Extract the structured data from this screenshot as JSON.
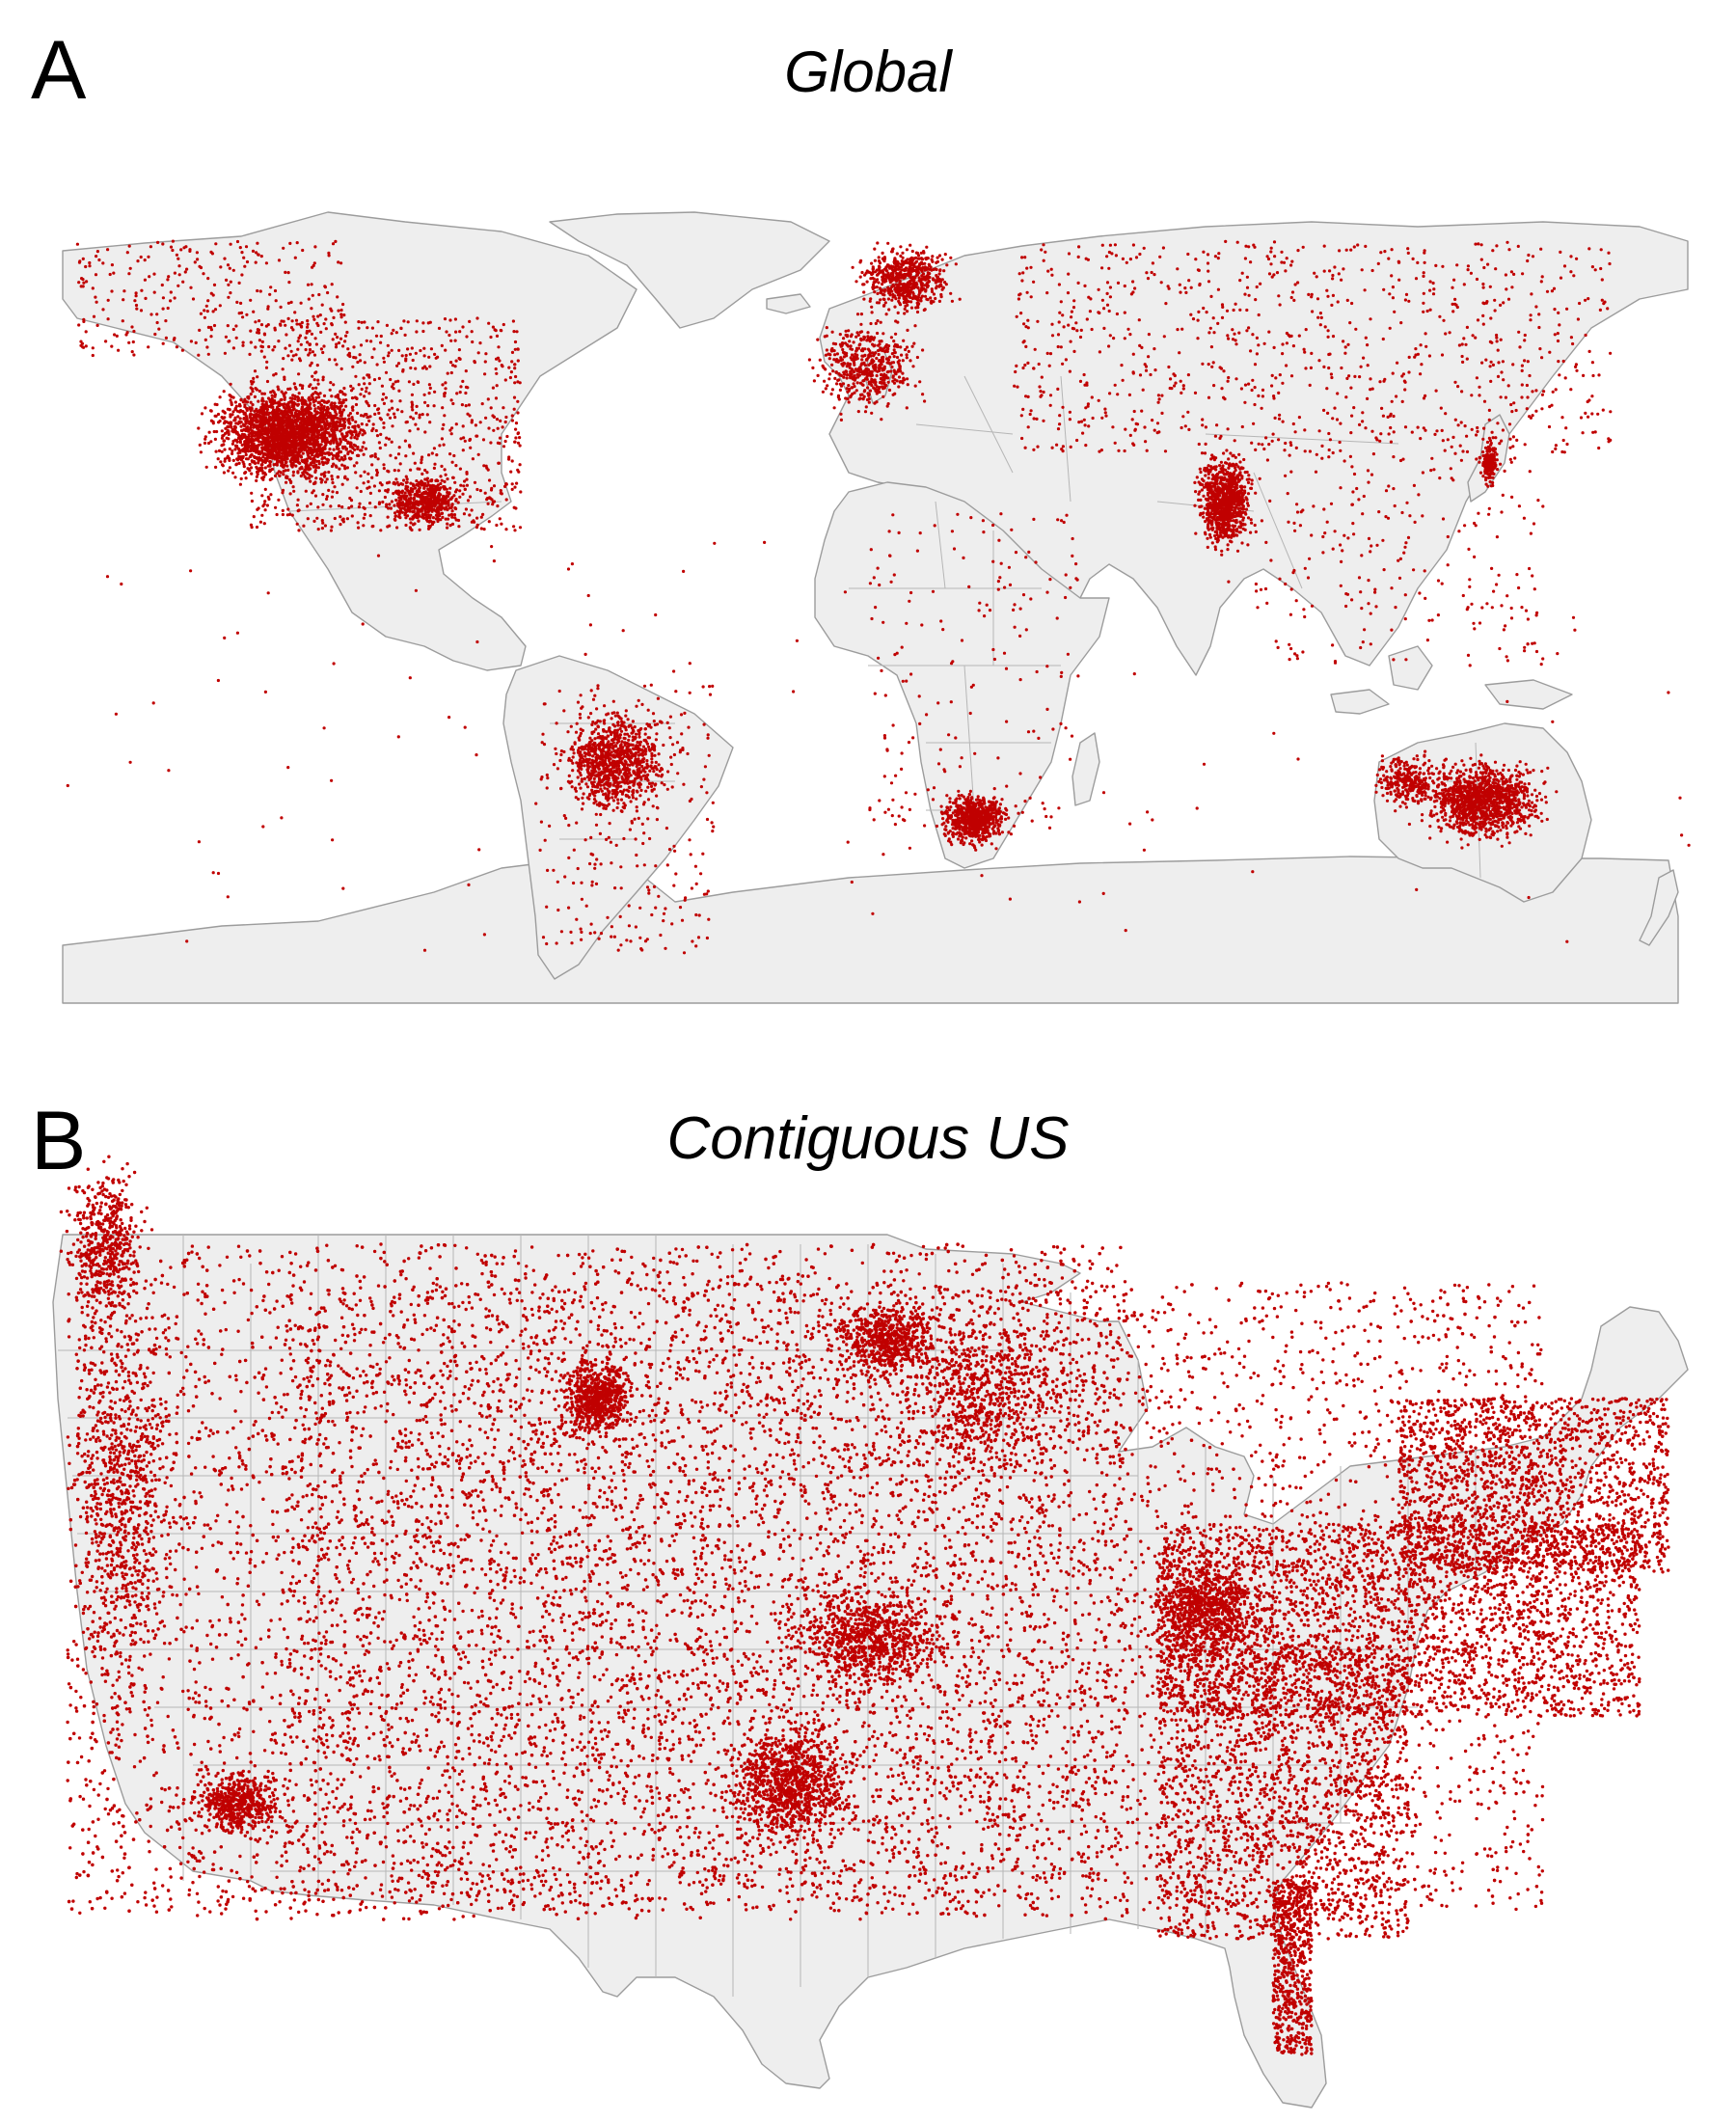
{
  "colors": {
    "dot": "#c00000",
    "land": "#eeeeee",
    "outline": "#9c9c9c"
  },
  "panels": [
    {
      "letter": "A",
      "title": "Global"
    },
    {
      "letter": "B",
      "title": "Contiguous US"
    }
  ]
}
